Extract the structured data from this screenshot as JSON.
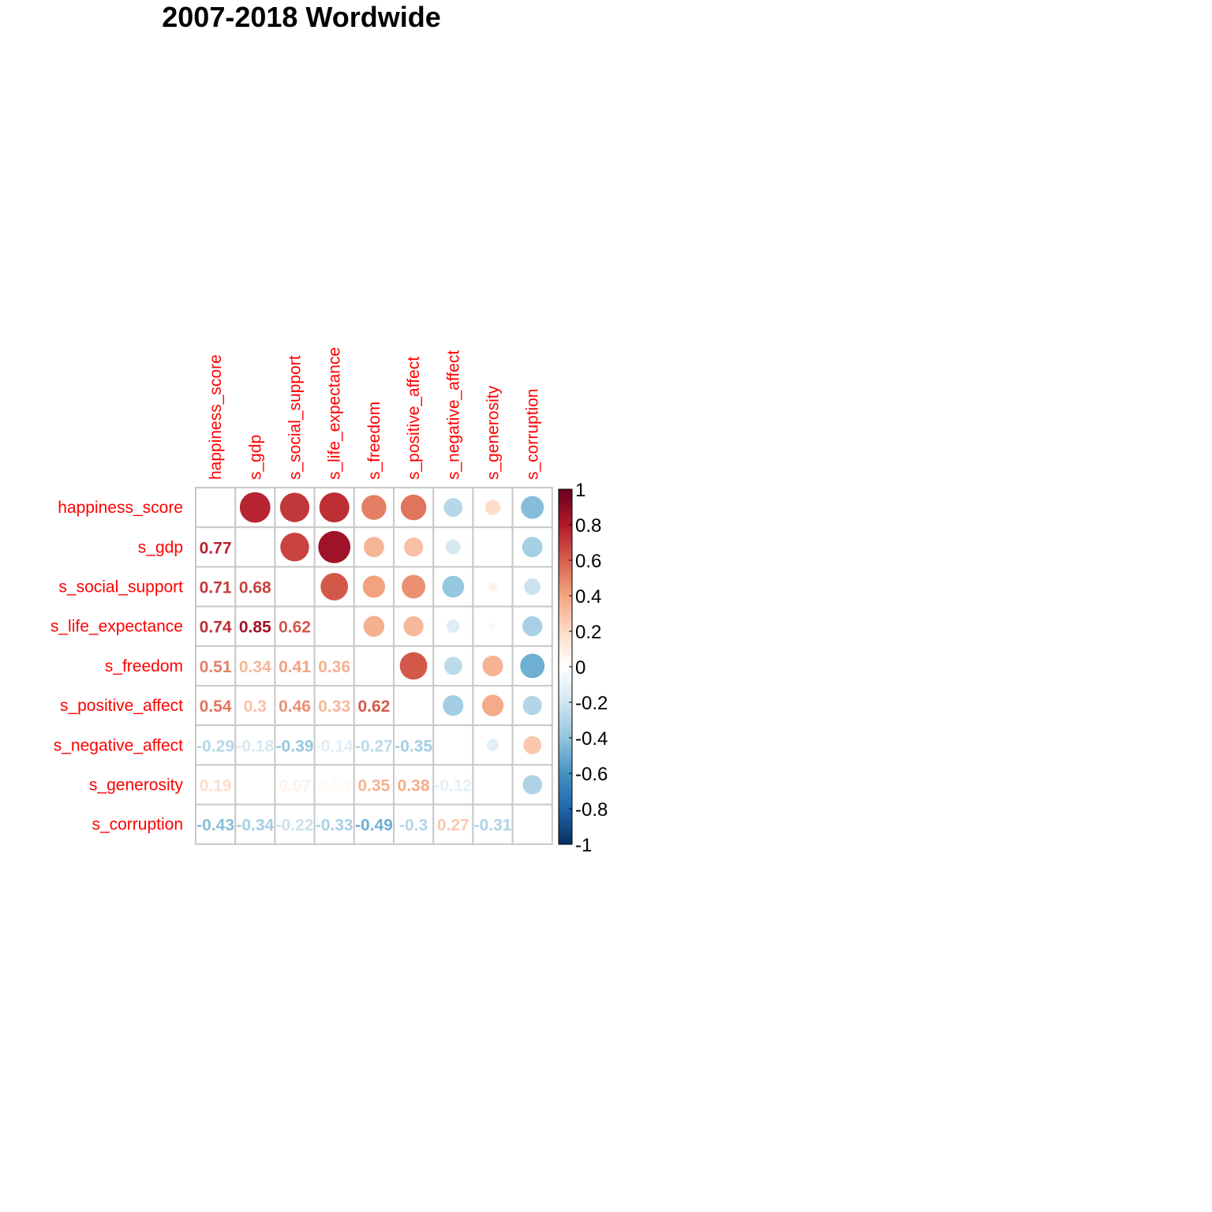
{
  "chart_data": {
    "type": "heatmap",
    "title": "2007-2018 Wordwide",
    "label_color": "#ff0000",
    "grid_color": "#c8c8c8",
    "variables": [
      "happiness_score",
      "s_gdp",
      "s_social_support",
      "s_life_expectance",
      "s_freedom",
      "s_positive_affect",
      "s_negative_affect",
      "s_generosity",
      "s_corruption"
    ],
    "matrix": [
      [
        1.0,
        0.77,
        0.71,
        0.74,
        0.51,
        0.54,
        -0.29,
        0.19,
        -0.43
      ],
      [
        0.77,
        1.0,
        0.68,
        0.85,
        0.34,
        0.3,
        -0.18,
        0.0,
        -0.34
      ],
      [
        0.71,
        0.68,
        1.0,
        0.62,
        0.41,
        0.46,
        -0.39,
        0.07,
        -0.22
      ],
      [
        0.74,
        0.85,
        0.62,
        1.0,
        0.36,
        0.33,
        -0.14,
        0.04,
        -0.33
      ],
      [
        0.51,
        0.34,
        0.41,
        0.36,
        1.0,
        0.62,
        -0.27,
        0.35,
        -0.49
      ],
      [
        0.54,
        0.3,
        0.46,
        0.33,
        0.62,
        1.0,
        -0.35,
        0.38,
        -0.3
      ],
      [
        -0.29,
        -0.18,
        -0.39,
        -0.14,
        -0.27,
        -0.35,
        1.0,
        -0.12,
        0.27
      ],
      [
        0.19,
        0.0,
        0.07,
        0.04,
        0.35,
        0.38,
        -0.12,
        1.0,
        -0.31
      ],
      [
        -0.43,
        -0.34,
        -0.22,
        -0.33,
        -0.49,
        -0.3,
        0.27,
        -0.31,
        1.0
      ]
    ],
    "display": {
      "upper": "circle",
      "lower": "number",
      "diagonal": "blank"
    },
    "value_labels": {
      "1": {
        "0": "0.77"
      },
      "2": {
        "0": "0.71",
        "1": "0.68"
      },
      "3": {
        "0": "0.74",
        "1": "0.85",
        "2": "0.62"
      },
      "4": {
        "0": "0.51",
        "1": "0.34",
        "2": "0.41",
        "3": "0.36"
      },
      "5": {
        "0": "0.54",
        "1": "0.3",
        "2": "0.46",
        "3": "0.33",
        "4": "0.62"
      },
      "6": {
        "0": "-0.29",
        "1": "-0.18",
        "2": "-0.39",
        "3": "-0.14",
        "4": "-0.27",
        "5": "-0.35"
      },
      "7": {
        "0": "0.19",
        "2": "0.07",
        "3": "0.04",
        "4": "0.35",
        "5": "0.38",
        "6": "-0.12"
      },
      "8": {
        "0": "-0.43",
        "1": "-0.34",
        "2": "-0.22",
        "3": "-0.33",
        "4": "-0.49",
        "5": "-0.3",
        "6": "0.27",
        "7": "-0.31"
      }
    },
    "color_scale": {
      "range": [
        -1,
        1
      ],
      "ticks": [
        "1",
        "0.8",
        "0.6",
        "0.4",
        "0.2",
        "0",
        "-0.2",
        "-0.4",
        "-0.6",
        "-0.8",
        "-1"
      ],
      "colors": [
        "#67001F",
        "#B2182B",
        "#D6604D",
        "#F4A582",
        "#FDDBC7",
        "#FFFFFF",
        "#D1E5F0",
        "#92C5DE",
        "#4393C3",
        "#2166AC",
        "#053061"
      ]
    }
  }
}
